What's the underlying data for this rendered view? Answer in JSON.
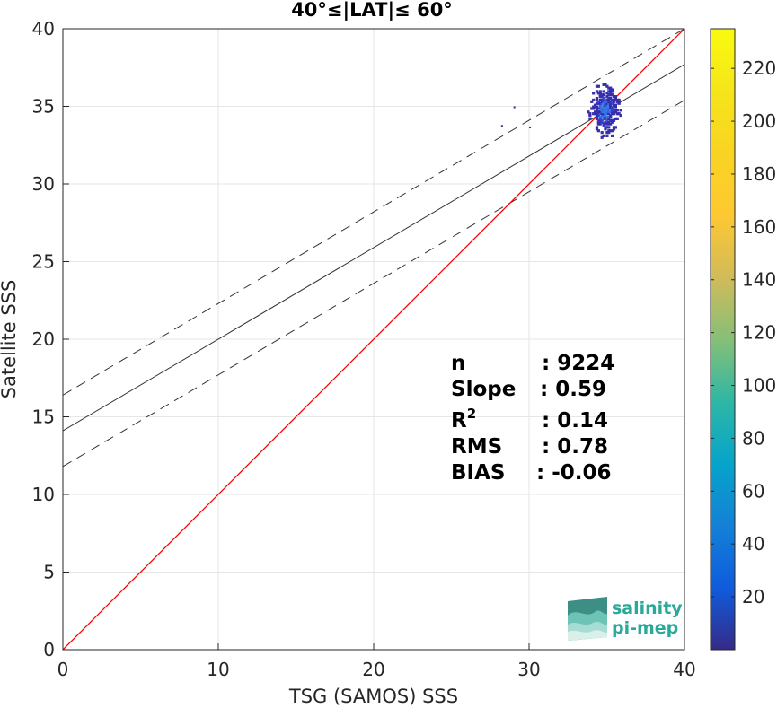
{
  "chart_data": {
    "type": "scatter",
    "title": "40°≤|LAT|≤ 60°",
    "xlabel": "TSG (SAMOS) SSS",
    "ylabel": "Satellite SSS",
    "xlim": [
      0,
      40
    ],
    "ylim": [
      0,
      40
    ],
    "xticks": [
      "0",
      "10",
      "20",
      "30",
      "40"
    ],
    "yticks": [
      "0",
      "5",
      "10",
      "15",
      "20",
      "25",
      "30",
      "35",
      "40"
    ],
    "grid": true,
    "lines": {
      "one_to_one": {
        "intercept": 0,
        "slope": 1,
        "color": "#ff0000"
      },
      "regression": {
        "intercept": 14.1,
        "slope": 0.59,
        "color": "#333333"
      },
      "upper_band": {
        "intercept": 16.4,
        "slope": 0.59,
        "dashed": true
      },
      "lower_band": {
        "intercept": 11.8,
        "slope": 0.59,
        "dashed": true
      }
    },
    "density_cluster": {
      "x_range": [
        33.5,
        36.0
      ],
      "y_range": [
        32.2,
        37.2
      ],
      "center": [
        34.8,
        34.7
      ],
      "colormap": "parula"
    },
    "outliers": [
      [
        29.0,
        35.0
      ],
      [
        28.2,
        33.8
      ],
      [
        30.0,
        33.7
      ]
    ],
    "stats": {
      "n_label": "n",
      "n_value": ": 9224",
      "slope_label": "Slope",
      "slope_value": ": 0.59",
      "r2_label": "R",
      "r2_sup": "2",
      "r2_value": ": 0.14",
      "rms_label": "RMS",
      "rms_value": ": 0.78",
      "bias_label": "BIAS",
      "bias_value": ": -0.06"
    },
    "colorbar": {
      "min": 0,
      "max": 235,
      "ticks": [
        "20",
        "40",
        "60",
        "80",
        "100",
        "120",
        "140",
        "160",
        "180",
        "200",
        "220"
      ],
      "colormap": "parula"
    }
  },
  "logo": {
    "line1": "salinity",
    "line2": "pi-mep"
  }
}
